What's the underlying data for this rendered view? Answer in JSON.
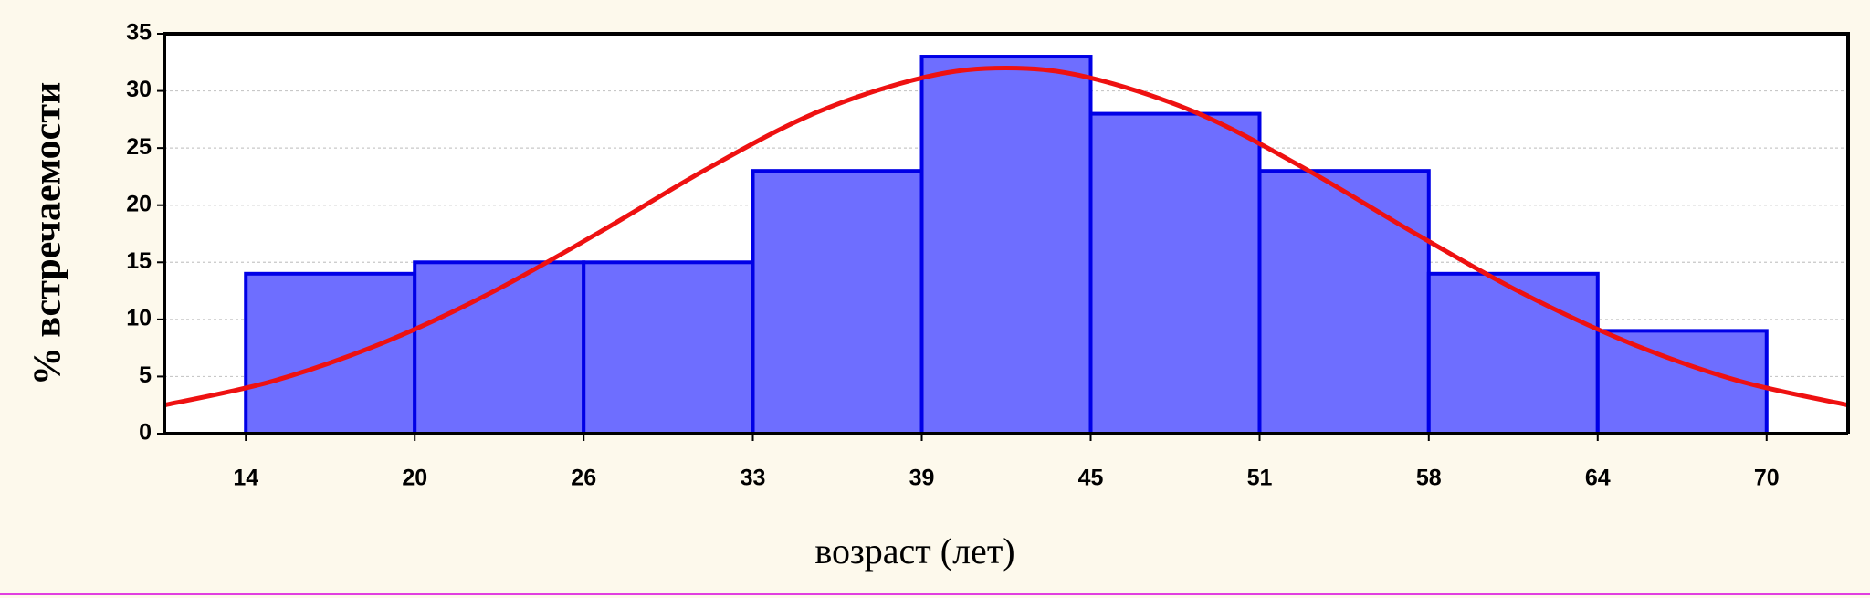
{
  "chart_data": {
    "type": "histogram",
    "xlabel": "возраст (лет)",
    "ylabel": "% встречаемости",
    "bins": [
      14,
      20.22,
      26.44,
      32.67,
      38.89,
      45.11,
      51.33,
      57.56,
      63.78,
      70
    ],
    "values": [
      14,
      15,
      15,
      23,
      33,
      28,
      23,
      14,
      9
    ],
    "color": "#6e6eff",
    "edge_color": "#0000e6",
    "xlim": [
      11,
      73
    ],
    "xticks": [
      14,
      {
        "value": 20.22,
        "label": "20"
      },
      {
        "value": 26.44,
        "label": "26"
      },
      {
        "value": 32.67,
        "label": "33"
      },
      {
        "value": 38.89,
        "label": "39"
      },
      {
        "value": 45.11,
        "label": "45"
      },
      {
        "value": 51.33,
        "label": "51"
      },
      {
        "value": 57.56,
        "label": "58"
      },
      {
        "value": 63.78,
        "label": "64"
      },
      70
    ],
    "ylim": [
      0,
      35
    ],
    "yticks": [
      0,
      5,
      10,
      15,
      20,
      25,
      30,
      35
    ],
    "grid": true,
    "curve": {
      "color": "#ee1111",
      "x": [
        11,
        15,
        19,
        23,
        27,
        31,
        35,
        39,
        42,
        45,
        49,
        53,
        57,
        61,
        65,
        69,
        73
      ],
      "values": [
        2.5,
        4.6,
        7.9,
        12.3,
        17.6,
        23.2,
        28.1,
        31.2,
        32,
        31.2,
        28.1,
        23.2,
        17.6,
        12.3,
        7.9,
        4.6,
        2.5
      ]
    }
  }
}
